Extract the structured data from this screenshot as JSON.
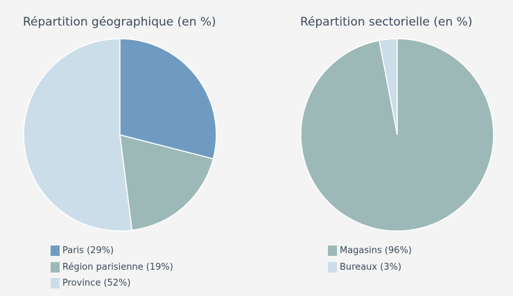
{
  "chart_data": [
    {
      "type": "pie",
      "title": "Répartition géographique (en %)",
      "slices": [
        {
          "label": "Paris (29%)",
          "value": 29,
          "color": "#6f9bc2"
        },
        {
          "label": "Région parisienne (19%)",
          "value": 19,
          "color": "#9cb9b8"
        },
        {
          "label": "Province (52%)",
          "value": 52,
          "color": "#cbdde8"
        }
      ],
      "legend": "bottom"
    },
    {
      "type": "pie",
      "title": "Répartition sectorielle (en %)",
      "slices": [
        {
          "label": "Magasins (96%)",
          "value": 96,
          "color": "#9cb9b8"
        },
        {
          "label": "Bureaux (3%)",
          "value": 3,
          "color": "#cbdde8"
        }
      ],
      "legend": "bottom"
    }
  ]
}
